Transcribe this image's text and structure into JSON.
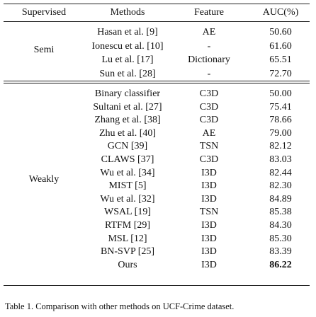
{
  "table": {
    "header": [
      "Supervised",
      "Methods",
      "Feature",
      "AUC(%)"
    ],
    "groups": [
      {
        "label": "Semi",
        "rows": [
          [
            "Hasan et al. [9]",
            "AE",
            "50.60"
          ],
          [
            "Ionescu et al. [10]",
            "-",
            "61.60"
          ],
          [
            "Lu et al. [17]",
            "Dictionary",
            "65.51"
          ],
          [
            "Sun et al. [28]",
            "-",
            "72.70"
          ]
        ]
      },
      {
        "label": "Weakly",
        "rows": [
          [
            "Binary classifier",
            "C3D",
            "50.00"
          ],
          [
            "Sultani et al. [27]",
            "C3D",
            "75.41"
          ],
          [
            "Zhang et al. [38]",
            "C3D",
            "78.66"
          ],
          [
            "Zhu et al. [40]",
            "AE",
            "79.00"
          ],
          [
            "GCN [39]",
            "TSN",
            "82.12"
          ],
          [
            "CLAWS [37]",
            "C3D",
            "83.03"
          ],
          [
            "Wu et al. [34]",
            "I3D",
            "82.44"
          ],
          [
            "MIST [5]",
            "I3D",
            "82.30"
          ],
          [
            "Wu et al. [32]",
            "I3D",
            "84.89"
          ],
          [
            "WSAL [19]",
            "TSN",
            "85.38"
          ],
          [
            "RTFM [29]",
            "I3D",
            "84.30"
          ],
          [
            "MSL [12]",
            "I3D",
            "85.30"
          ],
          [
            "BN-SVP [25]",
            "I3D",
            "83.39"
          ],
          [
            "Ours",
            "I3D",
            "86.22"
          ]
        ]
      }
    ]
  },
  "caption": "Table 1. Comparison with other methods on UCF-Crime dataset."
}
